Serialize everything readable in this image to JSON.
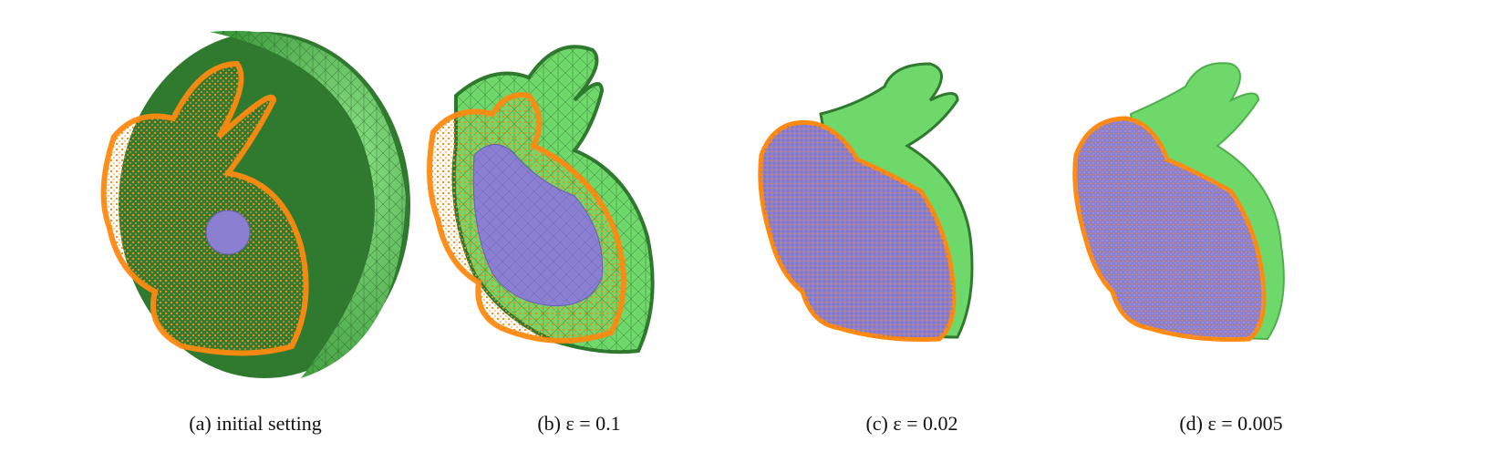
{
  "figure": {
    "panels": [
      {
        "id": "a",
        "caption": "(a) initial setting"
      },
      {
        "id": "b",
        "caption": "(b) ε = 0.1"
      },
      {
        "id": "c",
        "caption": "(c) ε = 0.02"
      },
      {
        "id": "d",
        "caption": "(d) ε = 0.005"
      }
    ]
  },
  "colors": {
    "outer_mesh_light": "#7fe07a",
    "outer_mesh_dark": "#2f7a2f",
    "inner_mesh": "#8a7fd0",
    "point_cloud": "#ff8a10",
    "wire": "#1f4d1f"
  }
}
